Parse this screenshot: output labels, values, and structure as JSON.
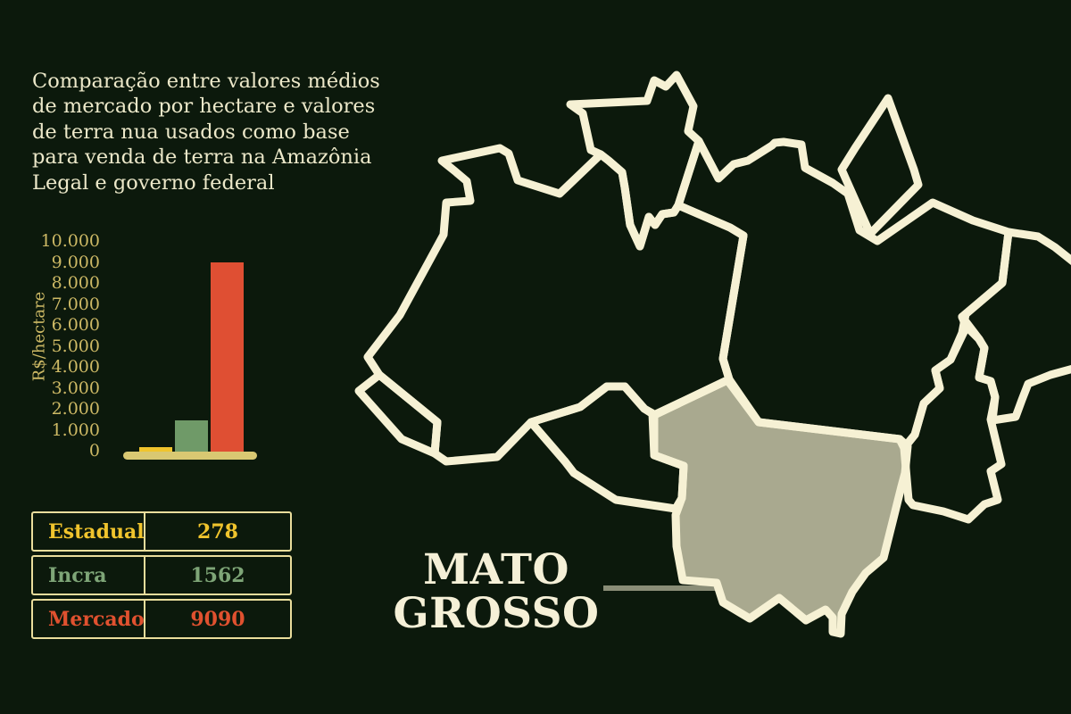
{
  "title": {
    "lines": [
      "Comparação entre valores médios",
      "de mercado por hectare e valores",
      "de terra nua usados como base",
      "para venda de terra na Amazônia",
      "Legal e governo federal"
    ]
  },
  "chart_data": {
    "type": "bar",
    "title": "",
    "xlabel": "",
    "ylabel": "R$/hectare",
    "ylim": [
      0,
      10000
    ],
    "yticks": [
      "10.000",
      "9.000",
      "8.000",
      "7.000",
      "6.000",
      "5.000",
      "4.000",
      "3.000",
      "2.000",
      "1.000",
      "0"
    ],
    "grid": false,
    "legend": false,
    "categories": [
      "Estadual",
      "Incra",
      "Mercado"
    ],
    "bars": [
      {
        "name": "Estadual",
        "value": 278,
        "color": "#f0c42d"
      },
      {
        "name": "Incra",
        "value": 1562,
        "color": "#6f9a68"
      },
      {
        "name": "Mercado",
        "value": 9090,
        "color": "#df4f33"
      }
    ]
  },
  "table": {
    "rows": [
      {
        "label": "Estadual",
        "value": "278",
        "color": "#f0c42d"
      },
      {
        "label": "Incra",
        "value": "1562",
        "color": "#7ea577"
      },
      {
        "label": "Mercado",
        "value": "9090",
        "color": "#e0512f"
      }
    ]
  },
  "map": {
    "region": "Amazônia Legal",
    "highlighted_state": "Mato Grosso",
    "label_lines": [
      "MATO",
      "GROSSO"
    ],
    "highlight_color": "#a9a98f",
    "outline_color": "#f6f1d4"
  },
  "colors": {
    "background": "#0c190c",
    "title_text": "#ece8c9",
    "gold_axis": "#cdb965",
    "baseline": "#d9c872",
    "table_border": "#eadd9c",
    "pointer_line": "#8a8d77",
    "label_text": "#f5f0d7"
  }
}
